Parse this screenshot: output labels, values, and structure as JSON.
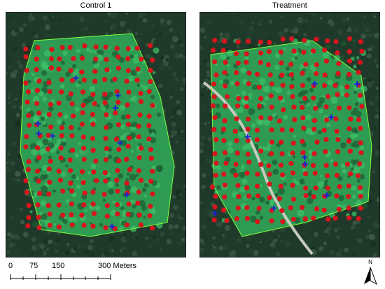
{
  "panels": [
    {
      "id": "left",
      "title": "Control 1"
    },
    {
      "id": "right",
      "title": "Treatment"
    }
  ],
  "scale_bar": {
    "ticks": [
      "0",
      "75",
      "150",
      "300 Meters"
    ]
  },
  "north_arrow": {
    "letter": "N",
    "icon": "north-arrow-icon"
  },
  "colors": {
    "forest_dark": "#1f3a2a",
    "meadow_green": "#2fa055",
    "bright_meadow": "#3ec26a",
    "road": "#c9c9c0",
    "red_marker": "#d8141c",
    "blue_marker": "#1a22d6",
    "polygon_outline": "#7fff3a"
  },
  "legend_symbols": {
    "red": "red-point",
    "blue": "blue-cross"
  }
}
